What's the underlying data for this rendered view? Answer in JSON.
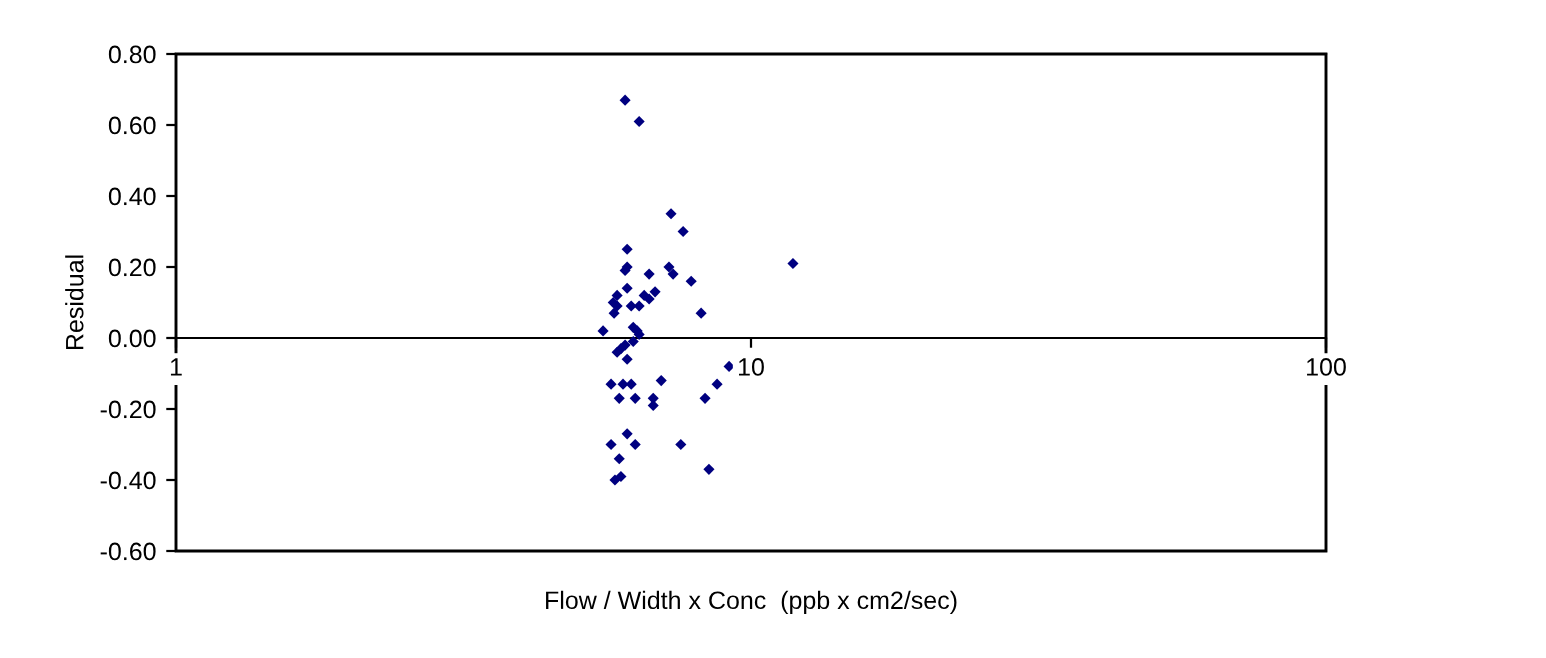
{
  "chart_data": {
    "type": "scatter",
    "xlabel": "Flow / Width x Conc  (ppb x cm2/sec)",
    "ylabel": "Residual",
    "log": "x",
    "xlim": [
      1,
      100
    ],
    "xticks": [
      1,
      10,
      100
    ],
    "ylim": [
      -0.6,
      0.8
    ],
    "yticks": [
      {
        "value": -0.6,
        "label": "-0.60"
      },
      {
        "value": -0.4,
        "label": "-0.40"
      },
      {
        "value": -0.2,
        "label": "-0.20"
      },
      {
        "value": 0,
        "label": "0.00"
      },
      {
        "value": 0.2,
        "label": "0.20"
      },
      {
        "value": 0.4,
        "label": "0.40"
      },
      {
        "value": 0.6,
        "label": "0.60"
      },
      {
        "value": 0.8,
        "label": "0.80"
      }
    ],
    "grid": false,
    "legend": false,
    "marker": "diamond",
    "series": [
      {
        "color": "#000080",
        "x": [
          6.04,
          6.39,
          7.26,
          7.62,
          6.09,
          6.09,
          6.04,
          6.65,
          7.2,
          7.32,
          7.87,
          11.83,
          6.09,
          5.85,
          6.52,
          6.65,
          6.81,
          5.76,
          5.85,
          5.78,
          6.19,
          6.39,
          8.19,
          5.53,
          6.24,
          6.34,
          6.39,
          6.24,
          6.04,
          5.94,
          5.85,
          6.09,
          9.16,
          5.71,
          5.99,
          6.19,
          8.73,
          6.98,
          5.9,
          6.29,
          6.76,
          6.76,
          8.32,
          6.09,
          5.71,
          6.29,
          7.55,
          5.9,
          8.45,
          5.94,
          5.8
        ],
        "values": [
          0.67,
          0.61,
          0.35,
          0.3,
          0.25,
          0.2,
          0.19,
          0.18,
          0.2,
          0.18,
          0.16,
          0.21,
          0.14,
          0.12,
          0.12,
          0.11,
          0.13,
          0.1,
          0.09,
          0.07,
          0.09,
          0.09,
          0.07,
          0.02,
          0.03,
          0.02,
          0.01,
          -0.01,
          -0.02,
          -0.03,
          -0.04,
          -0.06,
          -0.08,
          -0.13,
          -0.13,
          -0.13,
          -0.13,
          -0.12,
          -0.17,
          -0.17,
          -0.17,
          -0.19,
          -0.17,
          -0.27,
          -0.3,
          -0.3,
          -0.3,
          -0.34,
          -0.37,
          -0.39,
          -0.4
        ]
      }
    ]
  }
}
